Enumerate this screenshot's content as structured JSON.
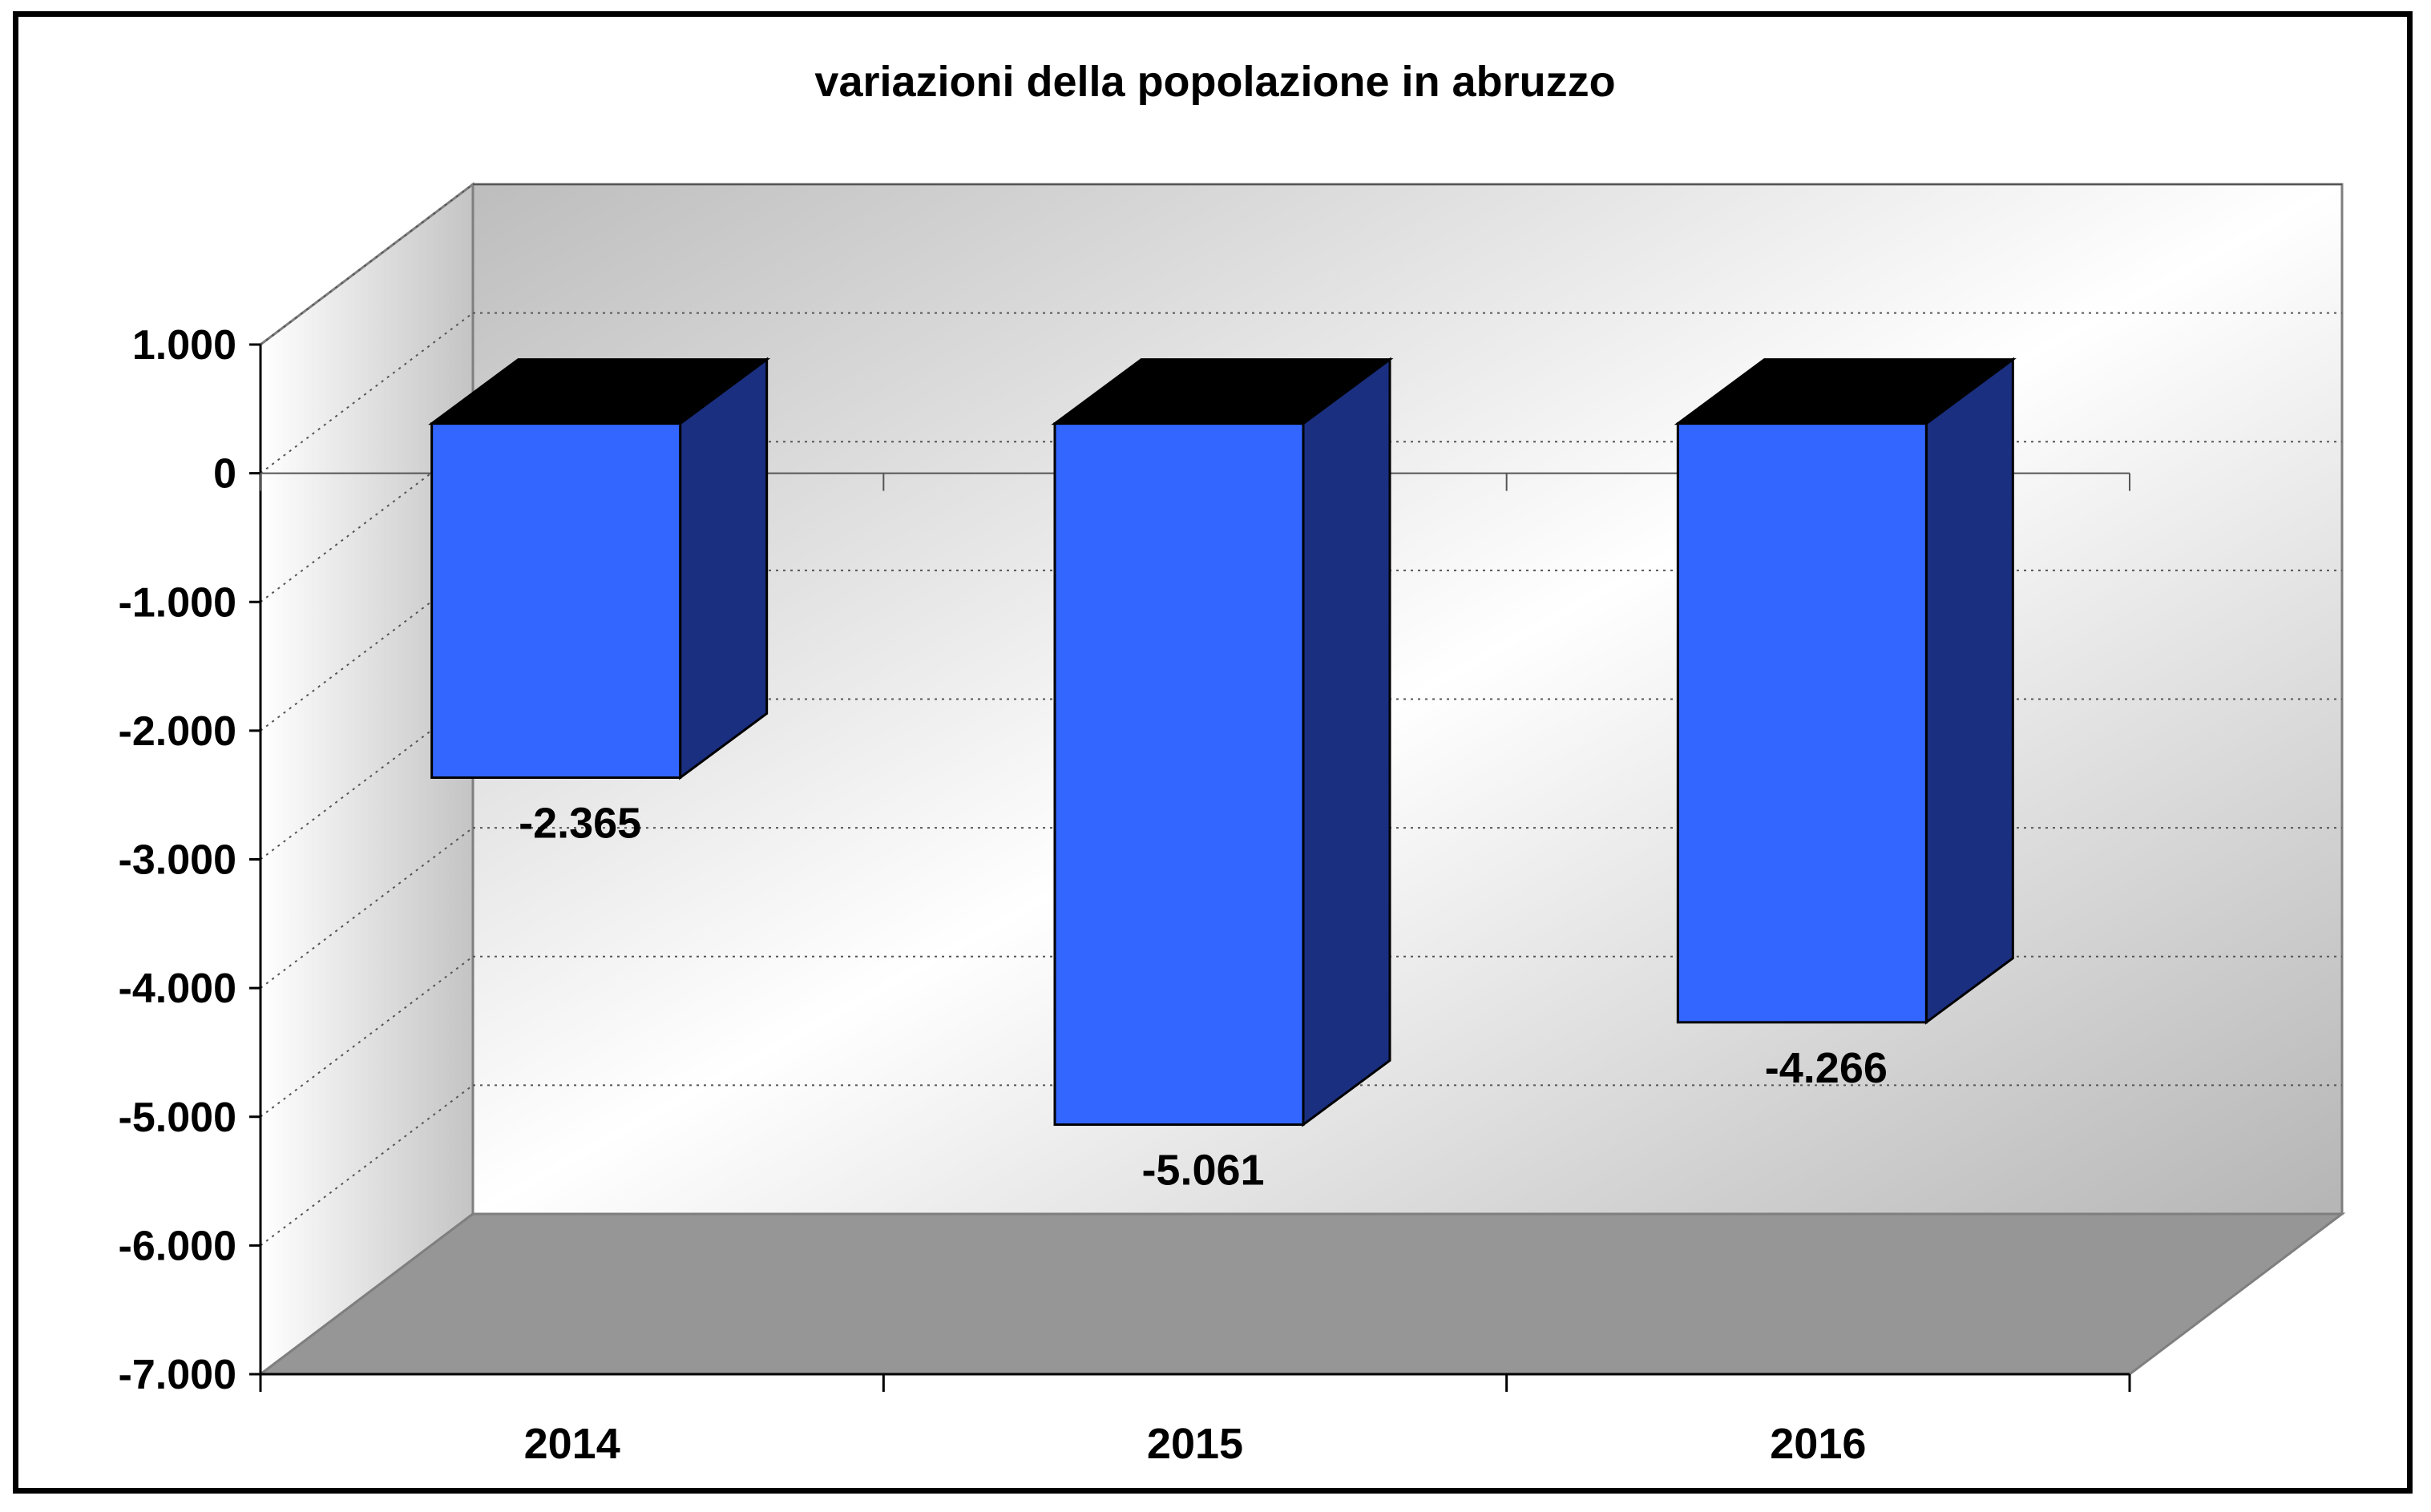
{
  "chart_data": {
    "type": "bar",
    "title": "variazioni della popolazione in abruzzo",
    "categories": [
      "2014",
      "2015",
      "2016"
    ],
    "values": [
      -2365,
      -5061,
      -4266
    ],
    "data_labels": [
      "-2.365",
      "-5.061",
      "-4.266"
    ],
    "ylim": [
      -7000,
      1000
    ],
    "yticks": [
      1000,
      0,
      -1000,
      -2000,
      -3000,
      -4000,
      -5000,
      -6000,
      -7000
    ],
    "ytick_labels": [
      "1.000",
      "0",
      "-1.000",
      "-2.000",
      "-3.000",
      "-4.000",
      "-5.000",
      "-6.000",
      "-7.000"
    ],
    "xlabel": "",
    "ylabel": "",
    "grid": true,
    "legend": "none",
    "style": "3d",
    "colors": {
      "bar_front": "#3366ff",
      "bar_side": "#1a2f80",
      "bar_top": "#000000",
      "floor": "#969696"
    }
  }
}
